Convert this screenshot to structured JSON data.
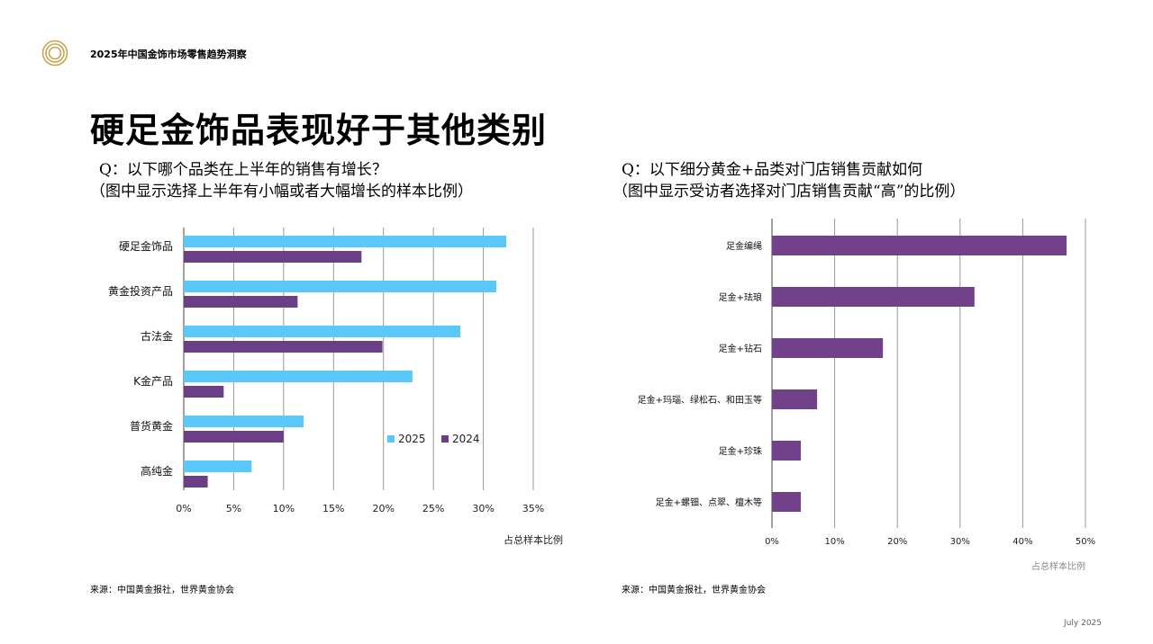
{
  "header": {
    "report_title": "2025年中国金饰市场零售趋势洞察",
    "page_title": "硬足金饰品表现好于其他类别"
  },
  "left": {
    "question_line1": "Q：以下哪个品类在上半年的销售有增长？",
    "question_line2": "（图中显示选择上半年有小幅或者大幅增长的样本比例）",
    "source": "来源：中国黄金报社，世界黄金协会"
  },
  "right": {
    "question_line1": "Q：以下细分黄金+品类对门店销售贡献如何",
    "question_line2": "（图中显示受访者选择对门店销售贡献“高”的比例）",
    "source": "来源：中国黄金报社，世界黄金协会"
  },
  "footer": {
    "date": "July 2025"
  },
  "colors": {
    "series2025": "#5BC8FA",
    "series2024": "#6B3F86",
    "purple": "#71418A",
    "grid": "#9a9a9a",
    "gold": "#C9A44B"
  },
  "chart_data": [
    {
      "type": "bar",
      "orientation": "horizontal",
      "categories": [
        "硬足金饰品",
        "黄金投资产品",
        "古法金",
        "K金产品",
        "普货黄金",
        "高纯金"
      ],
      "series": [
        {
          "name": "2025",
          "values": [
            32.3,
            31.3,
            27.7,
            22.9,
            12.0,
            6.8
          ]
        },
        {
          "name": "2024",
          "values": [
            17.8,
            11.4,
            19.9,
            4.0,
            10.0,
            2.4
          ]
        }
      ],
      "x_ticks": [
        "0%",
        "5%",
        "10%",
        "15%",
        "20%",
        "25%",
        "30%",
        "35%"
      ],
      "xlim": [
        0,
        35
      ],
      "xlabel": "占总样本比例",
      "legend": "bottom-right"
    },
    {
      "type": "bar",
      "orientation": "horizontal",
      "categories": [
        "足金编绳",
        "足金+珐琅",
        "足金+钻石",
        "足金+玛瑙、绿松石、和田玉等",
        "足金+珍珠",
        "足金+螺钿、点翠、檀木等"
      ],
      "series": [
        {
          "name": "高",
          "values": [
            47.0,
            32.3,
            17.7,
            7.2,
            4.6,
            4.6
          ]
        }
      ],
      "x_ticks": [
        "0%",
        "10%",
        "20%",
        "30%",
        "40%",
        "50%"
      ],
      "xlim": [
        0,
        50
      ],
      "xlabel": "占总样本比例"
    }
  ]
}
